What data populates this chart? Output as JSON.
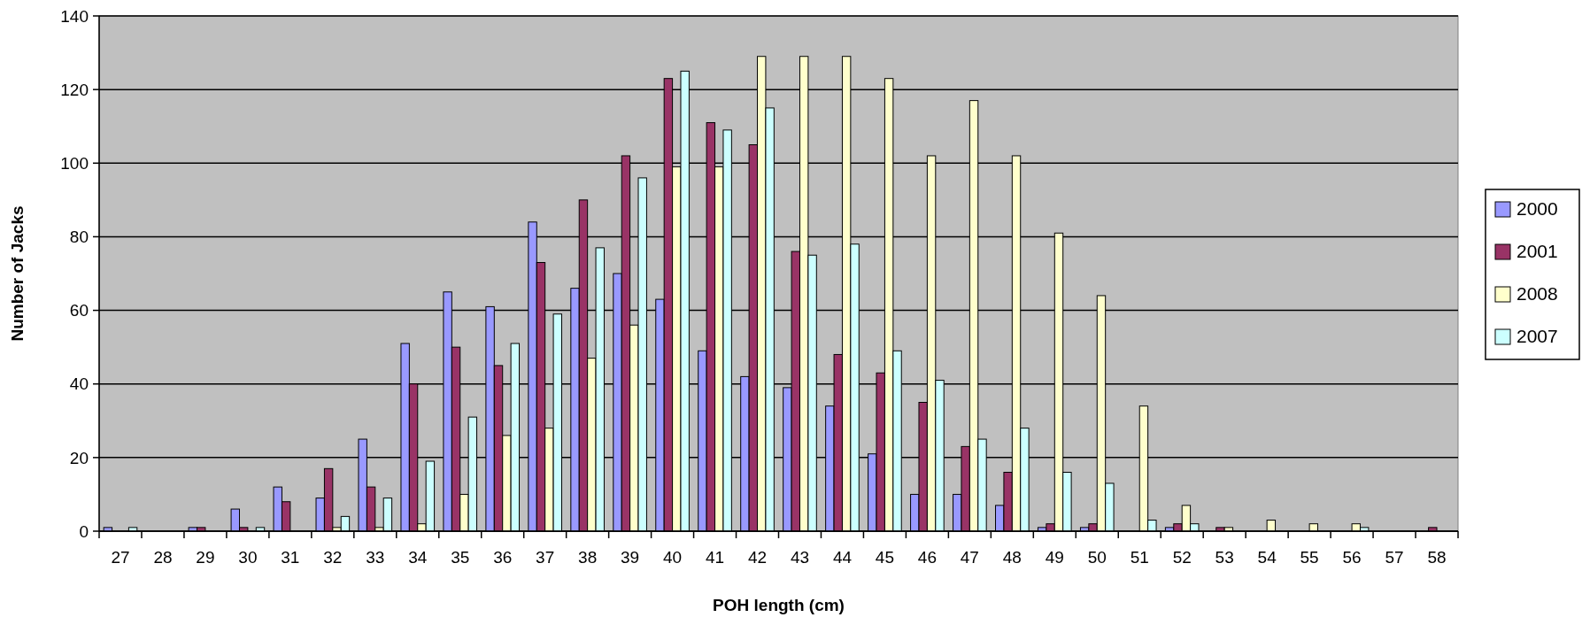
{
  "chart_data": {
    "type": "bar",
    "xlabel": "POH length (cm)",
    "ylabel": "Number of Jacks",
    "categories": [
      "27",
      "28",
      "29",
      "30",
      "31",
      "32",
      "33",
      "34",
      "35",
      "36",
      "37",
      "38",
      "39",
      "40",
      "41",
      "42",
      "43",
      "44",
      "45",
      "46",
      "47",
      "48",
      "49",
      "50",
      "51",
      "52",
      "53",
      "54",
      "55",
      "56",
      "57",
      "58"
    ],
    "series": [
      {
        "name": "2000",
        "color": "#9999ff",
        "values": [
          1,
          0,
          1,
          6,
          12,
          9,
          25,
          51,
          65,
          61,
          84,
          66,
          70,
          63,
          49,
          42,
          39,
          34,
          21,
          10,
          10,
          7,
          1,
          1,
          0,
          1,
          0,
          0,
          0,
          0,
          0,
          0
        ]
      },
      {
        "name": "2001",
        "color": "#993366",
        "values": [
          0,
          0,
          1,
          1,
          8,
          17,
          12,
          40,
          50,
          45,
          73,
          90,
          102,
          123,
          111,
          105,
          76,
          48,
          43,
          35,
          23,
          16,
          2,
          2,
          0,
          2,
          1,
          0,
          0,
          0,
          0,
          1
        ]
      },
      {
        "name": "2008",
        "color": "#ffffcc",
        "values": [
          0,
          0,
          0,
          0,
          0,
          1,
          1,
          2,
          10,
          26,
          28,
          47,
          56,
          99,
          99,
          129,
          129,
          129,
          123,
          102,
          117,
          102,
          81,
          64,
          34,
          7,
          1,
          3,
          2,
          2,
          0,
          0
        ]
      },
      {
        "name": "2007",
        "color": "#ccffff",
        "values": [
          1,
          0,
          0,
          1,
          0,
          4,
          9,
          19,
          31,
          51,
          59,
          77,
          96,
          125,
          109,
          115,
          75,
          78,
          49,
          41,
          25,
          28,
          16,
          13,
          3,
          2,
          0,
          0,
          0,
          1,
          0,
          0
        ]
      }
    ],
    "ylim": [
      0,
      140
    ],
    "yticks": [
      0,
      20,
      40,
      60,
      80,
      100,
      120,
      140
    ],
    "grid": "y",
    "legend": "right"
  }
}
